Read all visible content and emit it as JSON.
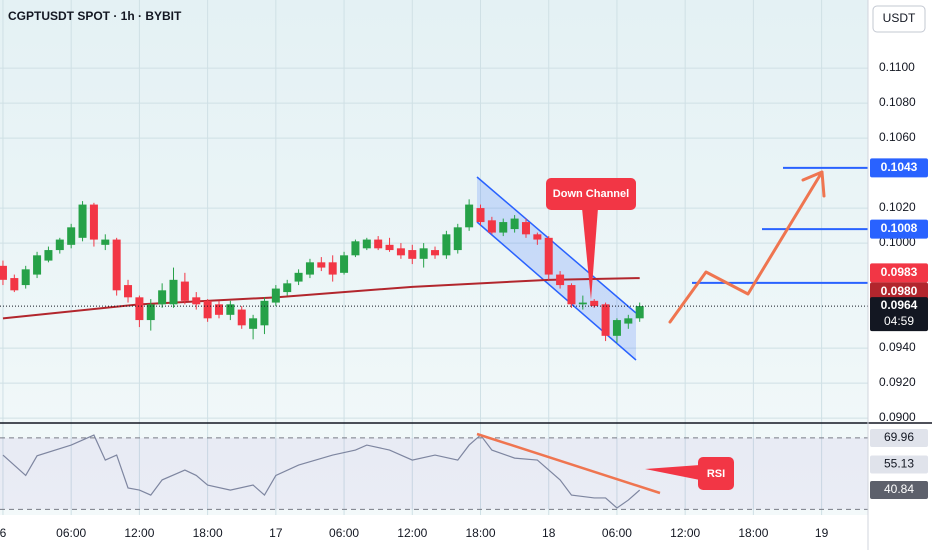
{
  "chart_data": {
    "type": "candlestick",
    "title": "CGPTUSDT SPOT · 1h · BYBIT",
    "currency": "USDT",
    "x": [
      0,
      1,
      2,
      3,
      4,
      5,
      6,
      7,
      8,
      9,
      10,
      11,
      12,
      13,
      14,
      15,
      16,
      17,
      18,
      19,
      20,
      21,
      22,
      23,
      24,
      25,
      26,
      27,
      28,
      29,
      30,
      31,
      32,
      33,
      34,
      35,
      36,
      37,
      38,
      39,
      40,
      41,
      42,
      43,
      44,
      45,
      46,
      47,
      48,
      49,
      50,
      51,
      52,
      53,
      54,
      55,
      56
    ],
    "open": [
      0.0987,
      0.098,
      0.0976,
      0.0982,
      0.099,
      0.0996,
      0.0999,
      0.1003,
      0.1022,
      0.0999,
      0.1002,
      0.0976,
      0.0969,
      0.0956,
      0.0965,
      0.0965,
      0.0978,
      0.0969,
      0.0967,
      0.0965,
      0.0959,
      0.0962,
      0.0951,
      0.0953,
      0.0966,
      0.0972,
      0.0978,
      0.0982,
      0.0989,
      0.0989,
      0.0983,
      0.0993,
      0.0997,
      0.1002,
      0.0999,
      0.0997,
      0.0996,
      0.0991,
      0.0996,
      0.0993,
      0.0996,
      0.1009,
      0.102,
      0.1013,
      0.1006,
      0.1008,
      0.1012,
      0.1005,
      0.1003,
      0.0982,
      0.0976,
      0.0965,
      0.0967,
      0.0965,
      0.0947,
      0.0954,
      0.0957
    ],
    "high": [
      0.099,
      0.0982,
      0.0987,
      0.0995,
      0.0998,
      0.1003,
      0.1011,
      0.1024,
      0.1023,
      0.1005,
      0.1003,
      0.0979,
      0.097,
      0.0968,
      0.0977,
      0.0986,
      0.0983,
      0.0972,
      0.0968,
      0.0967,
      0.0967,
      0.0964,
      0.0959,
      0.0969,
      0.0976,
      0.0979,
      0.0985,
      0.0991,
      0.0992,
      0.0993,
      0.0995,
      0.1002,
      0.1003,
      0.1004,
      0.1003,
      0.1,
      0.0999,
      0.1,
      0.0998,
      0.1007,
      0.1011,
      0.1025,
      0.1022,
      0.1015,
      0.1014,
      0.1016,
      0.1014,
      0.1006,
      0.1004,
      0.0984,
      0.0977,
      0.097,
      0.0968,
      0.0966,
      0.0957,
      0.0959,
      0.0966
    ],
    "low": [
      0.0976,
      0.0972,
      0.0974,
      0.098,
      0.0989,
      0.0994,
      0.0997,
      0.1001,
      0.0998,
      0.0996,
      0.097,
      0.0966,
      0.0952,
      0.095,
      0.0963,
      0.0963,
      0.0965,
      0.0962,
      0.0955,
      0.0957,
      0.0956,
      0.0951,
      0.0945,
      0.0948,
      0.0964,
      0.097,
      0.0976,
      0.098,
      0.0984,
      0.0978,
      0.0982,
      0.0992,
      0.0996,
      0.0996,
      0.0995,
      0.0991,
      0.0988,
      0.0986,
      0.0991,
      0.0991,
      0.0994,
      0.1007,
      0.101,
      0.1005,
      0.1004,
      0.1006,
      0.1003,
      0.0999,
      0.0979,
      0.0974,
      0.0963,
      0.0962,
      0.0963,
      0.0944,
      0.0943,
      0.0951,
      0.0955
    ],
    "close": [
      0.0979,
      0.0973,
      0.0985,
      0.0993,
      0.0996,
      0.1002,
      0.1009,
      0.1022,
      0.1002,
      0.1002,
      0.0973,
      0.0969,
      0.0956,
      0.0965,
      0.0973,
      0.0979,
      0.0967,
      0.0965,
      0.0957,
      0.0959,
      0.0965,
      0.0953,
      0.0957,
      0.0967,
      0.0974,
      0.0977,
      0.0983,
      0.0989,
      0.0986,
      0.0982,
      0.0993,
      0.1001,
      0.1002,
      0.0997,
      0.0996,
      0.0993,
      0.0991,
      0.0997,
      0.0993,
      0.1005,
      0.1009,
      0.1022,
      0.1012,
      0.1006,
      0.1012,
      0.1014,
      0.1005,
      0.1002,
      0.0982,
      0.0976,
      0.0965,
      0.0966,
      0.0964,
      0.0947,
      0.0956,
      0.0957,
      0.0964
    ],
    "up_color": "#26a148",
    "down_color": "#f23645",
    "xlim": [
      -0.26,
      76.08
    ],
    "xticks": [
      {
        "value": 0,
        "label": "6"
      },
      {
        "value": 6,
        "label": "06:00"
      },
      {
        "value": 12,
        "label": "12:00"
      },
      {
        "value": 18,
        "label": "18:00"
      },
      {
        "value": 24,
        "label": "17"
      },
      {
        "value": 30,
        "label": "06:00"
      },
      {
        "value": 36,
        "label": "12:00"
      },
      {
        "value": 42,
        "label": "18:00"
      },
      {
        "value": 48,
        "label": "18"
      },
      {
        "value": 54,
        "label": "06:00"
      },
      {
        "value": 60,
        "label": "12:00"
      },
      {
        "value": 66,
        "label": "18:00"
      },
      {
        "value": 72,
        "label": "19"
      }
    ],
    "ylim": [
      0.08989,
      0.11389
    ],
    "yticks": [
      {
        "value": 0.09,
        "label": "0.0900"
      },
      {
        "value": 0.092,
        "label": "0.0920"
      },
      {
        "value": 0.094,
        "label": "0.0940"
      },
      {
        "value": 0.1,
        "label": "0.1000"
      },
      {
        "value": 0.102,
        "label": "0.1020"
      },
      {
        "value": 0.106,
        "label": "0.1060"
      },
      {
        "value": 0.108,
        "label": "0.1080"
      },
      {
        "value": 0.11,
        "label": "0.1100"
      }
    ],
    "grid": true,
    "ma": {
      "x": [
        0,
        12,
        24,
        36,
        48,
        56
      ],
      "values": [
        0.0957,
        0.0965,
        0.0969,
        0.0975,
        0.0979,
        0.098
      ],
      "color": "#b2262d"
    },
    "levels": [
      {
        "value": 0.1043,
        "color": "#2962ff"
      },
      {
        "value": 0.1008,
        "color": "#2962ff"
      },
      {
        "value": 0.0983,
        "color": "#f23645"
      },
      {
        "value": 0.098,
        "label": "0.0980",
        "color": "#b2262d"
      }
    ],
    "current": {
      "value": 0.0964,
      "countdown": "04:59",
      "color": "#131722"
    },
    "annotations": [
      "Down Channel",
      "RSI"
    ],
    "rsi": {
      "x": [
        0,
        2,
        3,
        6,
        8,
        9,
        10,
        11,
        12,
        13,
        14,
        16,
        17,
        18,
        20,
        22,
        23,
        24,
        26,
        29,
        31,
        32,
        34,
        36,
        38,
        40,
        41,
        42,
        43,
        45,
        47,
        49,
        50,
        52,
        53,
        54,
        55,
        56
      ],
      "values": [
        60.4,
        49,
        60,
        66,
        71.6,
        57.6,
        60.4,
        42,
        40.8,
        38,
        46.5,
        52,
        49,
        43.6,
        40.8,
        43.6,
        38,
        49,
        54.8,
        60.4,
        63.2,
        66,
        63.2,
        57.6,
        60.4,
        57.6,
        66,
        71.6,
        63.2,
        58.7,
        57.6,
        46.5,
        38,
        36.4,
        36.4,
        30.8,
        35.2,
        40.84
      ],
      "color": "#7e86a0",
      "ylim": [
        26.85,
        77.24
      ],
      "band": [
        30,
        70
      ],
      "tags": [
        69.96,
        55.13,
        40.84
      ],
      "tag_colors": [
        "#e0e3eb",
        "#e0e3eb",
        "#5d606b"
      ]
    }
  }
}
